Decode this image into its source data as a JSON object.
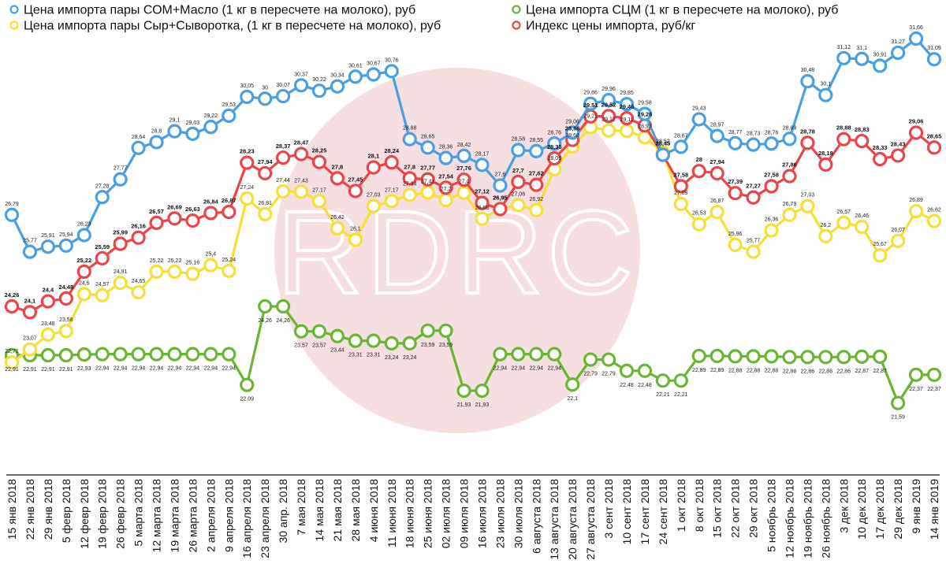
{
  "chart_data": {
    "type": "line",
    "title": "",
    "xlabel": "",
    "ylabel": "",
    "ylim": [
      21.3,
      31.9
    ],
    "grid": false,
    "legend_position": "top",
    "watermark": "RDRC",
    "x": [
      "15 янв 2018",
      "22 янв 2018",
      "29 янв 2018",
      "5 февр 2018",
      "12 февр 2018",
      "19 февр 2018",
      "26 февр 2018",
      "5 марта 2018",
      "12 марта 2018",
      "19 марта 2018",
      "26  марта 2018",
      "2 апреля 2018",
      "9 апреля 2018",
      "16 апреля 2018",
      "23 апреля 2018",
      "30 апр. 2018",
      "7 мая 2018",
      "14 мая 2018",
      "21 мая 2018",
      "28 мая 2018",
      "4 июня 2018",
      "11 июня 2018",
      "18 июня 2018",
      "25 июня 2018",
      "02 июля 2018",
      "09 июля 2018",
      "16 июля 2018",
      "23 июля 2018",
      "30 июля 2018",
      "6 августа 2018",
      "13 августа 2018",
      "20 августа 2018",
      "27 августа 2018",
      "3 сент 2018",
      "10 сент 2018",
      "17 сент 2018",
      "24 сент 2018",
      "1 окт 2018",
      "8 окт 2018",
      "15 окт 2018",
      "22 окт 2018",
      "29 окт 2018",
      "5 ноябрь 2018",
      "12 ноябрь 2018",
      "19 ноябрь 2018",
      "26 ноябрь 2018",
      "3 дек 2018",
      "10 дек 2018",
      "17 дек 2018",
      "29 дек 2018",
      "9 янв 2019",
      "14 янв 2019"
    ],
    "series": [
      {
        "name": "Цена импорта пары СОМ+Масло (1 кг в пересчете на молоко), руб",
        "color": "#4a9fe3",
        "bold_labels": false,
        "values": [
          26.79,
          25.77,
          25.91,
          25.94,
          26.23,
          27.28,
          27.77,
          28.64,
          28.8,
          29.1,
          29.03,
          29.22,
          29.53,
          30.05,
          30,
          30.07,
          30.37,
          30.22,
          30.34,
          30.61,
          30.67,
          30.76,
          28.88,
          28.65,
          28.36,
          28.42,
          28.17,
          27.6,
          28.58,
          28.55,
          28.76,
          29.06,
          29.86,
          29.96,
          29.85,
          29.58,
          28.45,
          28.67,
          29.43,
          28.97,
          28.77,
          28.73,
          28.76,
          28.89,
          30.48,
          30.1,
          31.12,
          31.1,
          30.91,
          31.27,
          31.66,
          31.09
        ],
        "labels": [
          "26,79",
          "25,77",
          "25,91",
          "25,94",
          "26,23",
          "27,28",
          "27,77",
          "28,64",
          "28,8",
          "29,1",
          "29,03",
          "29,22",
          "29,53",
          "30,05",
          "30",
          "30,07",
          "30,37",
          "30,22",
          "30,34",
          "30,61",
          "30,67",
          "30,76",
          "28,88",
          "28,65",
          "28,36",
          "28,42",
          "28,17",
          "27,6",
          "28,58",
          "28,55",
          "28,76",
          "29,06",
          "29,86",
          "29,96",
          "29,85",
          "29,58",
          "28,45",
          "28,67",
          "29,43",
          "28,97",
          "28,77",
          "28,73",
          "28,76",
          "28,89",
          "30,48",
          "30,1",
          "31,12",
          "31,1",
          "30,91",
          "31,27",
          "31,66",
          "31,09"
        ]
      },
      {
        "name": "Цена импорта пары Сыр+Сыворотка, (1 кг в пересчете на молоко), руб",
        "color": "#f5e03a",
        "bold_labels": false,
        "values": [
          22.71,
          23.07,
          23.48,
          23.58,
          24.6,
          24.57,
          24.91,
          24.65,
          25.22,
          25.22,
          25.16,
          25.4,
          25.24,
          27.24,
          26.81,
          27.44,
          27.43,
          27.17,
          26.42,
          26.1,
          27.03,
          27.17,
          27.34,
          27.41,
          27.2,
          27.4,
          26.68,
          26.95,
          27.06,
          26.92,
          28.05,
          28.68,
          29.21,
          29.12,
          29.11,
          28.93,
          28.52,
          27.09,
          26.53,
          26.87,
          25.96,
          25.77,
          26.36,
          26.79,
          27.03,
          26.2,
          26.57,
          26.46,
          25.67,
          26.07,
          26.89,
          26.62
        ],
        "labels": [
          "22,71",
          "23,07",
          "23,48",
          "23,58",
          "24,6",
          "24,57",
          "24,91",
          "24,65",
          "25,22",
          "25,22",
          "25,16",
          "25,4",
          "25,24",
          "27,24",
          "26,81",
          "27,44",
          "27,43",
          "27,17",
          "26,42",
          "26,1",
          "27,03",
          "27,17",
          "27,34",
          "27,41",
          "27,2",
          "27,4",
          "26,68",
          "26,95",
          "27,06",
          "26,92",
          "28,05",
          "28,68",
          "29,21",
          "29,12",
          "29,11",
          "28,93",
          "28,52",
          "27,09",
          "26,53",
          "26,87",
          "25,96",
          "25,77",
          "26,36",
          "26,79",
          "27,03",
          "26,2",
          "26,57",
          "26,46",
          "25,67",
          "26,07",
          "26,89",
          "26,62"
        ]
      },
      {
        "name": "Цена импорта СЦМ (1 кг в пересчете на молоко), руб",
        "color": "#6ab634",
        "bold_labels": false,
        "values": [
          22.91,
          22.91,
          22.91,
          22.91,
          22.93,
          22.94,
          22.94,
          22.94,
          22.94,
          22.94,
          22.94,
          22.94,
          22.94,
          22.09,
          24.26,
          24.26,
          23.57,
          23.57,
          23.44,
          23.31,
          23.31,
          23.24,
          23.24,
          23.59,
          23.59,
          21.93,
          21.93,
          22.94,
          22.94,
          22.94,
          22.94,
          22.1,
          22.79,
          22.79,
          22.48,
          22.48,
          22.21,
          22.21,
          22.89,
          22.89,
          22.88,
          22.88,
          22.88,
          22.86,
          22.86,
          22.86,
          22.86,
          22.87,
          22.87,
          21.59,
          22.37,
          22.37
        ],
        "labels": [
          "22,91",
          "22,91",
          "22,91",
          "22,91",
          "22,93",
          "22,94",
          "22,94",
          "22,94",
          "22,94",
          "22,94",
          "22,94",
          "22,94",
          "22,94",
          "22,09",
          "24,26",
          "24,26",
          "23,57",
          "23,57",
          "23,44",
          "23,31",
          "23,31",
          "23,24",
          "23,24",
          "23,59",
          "23,59",
          "21,93",
          "21,93",
          "22,94",
          "22,94",
          "22,94",
          "22,94",
          "22,1",
          "22,79",
          "22,79",
          "22,48",
          "22,48",
          "22,21",
          "22,21",
          "22,89",
          "22,89",
          "22,88",
          "22,88",
          "22,88",
          "22,86",
          "22,86",
          "22,86",
          "22,86",
          "22,87",
          "22,87",
          "21,59",
          "22,37",
          "22,37"
        ]
      },
      {
        "name": "Индекс цены импорта, руб/кг",
        "color": "#e8464a",
        "bold_labels": true,
        "values": [
          24.26,
          24.1,
          24.4,
          24.48,
          25.22,
          25.59,
          25.99,
          26.16,
          26.57,
          26.69,
          26.63,
          26.84,
          26.87,
          28.23,
          27.94,
          28.37,
          28.47,
          28.25,
          27.8,
          27.45,
          28.1,
          28.24,
          27.8,
          27.77,
          27.54,
          27.76,
          27.12,
          26.95,
          27.7,
          27.62,
          28.35,
          28.86,
          29.51,
          29.52,
          29.46,
          29.26,
          28.45,
          27.58,
          28,
          27.94,
          27.39,
          27.27,
          27.58,
          27.86,
          28.78,
          28.18,
          28.88,
          28.83,
          28.33,
          28.43,
          29.06,
          28.65
        ],
        "labels": [
          "24,26",
          "24,1",
          "24,4",
          "24,48",
          "25,22",
          "25,59",
          "25,99",
          "26,16",
          "26,57",
          "26,69",
          "26,63",
          "26,84",
          "26,87",
          "28,23",
          "27,94",
          "28,37",
          "28,47",
          "28,25",
          "27,8",
          "27,45",
          "28,1",
          "28,24",
          "27,8",
          "27,77",
          "27,54",
          "27,76",
          "27,12",
          "26,95",
          "27,7",
          "27,62",
          "28,35",
          "28,86",
          "29,51",
          "29,52",
          "29,46",
          "29,26",
          "28,45",
          "27,58",
          "28",
          "27,94",
          "27,39",
          "27,27",
          "27,58",
          "27,86",
          "28,78",
          "28,18",
          "28,88",
          "28,83",
          "28,33",
          "28,43",
          "29,06",
          "28,65"
        ]
      }
    ]
  }
}
